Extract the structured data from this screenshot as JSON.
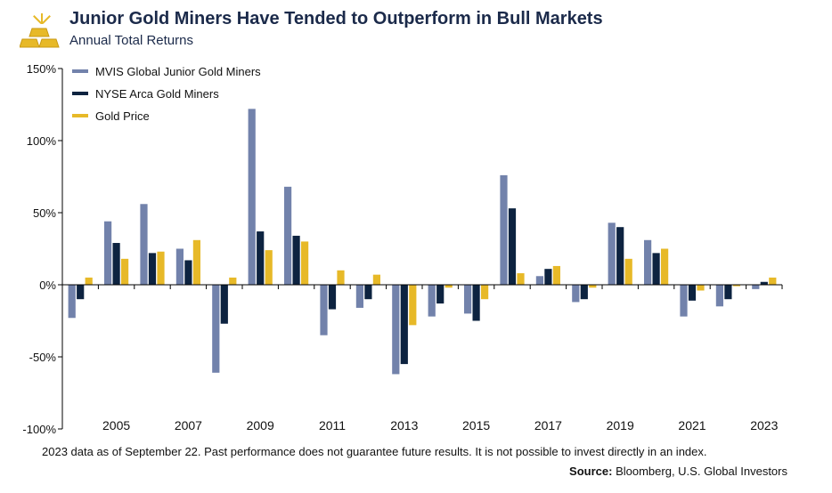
{
  "header": {
    "title": "Junior Gold Miners Have Tended to Outperform in Bull Markets",
    "subtitle": "Annual Total Returns"
  },
  "footer": {
    "note": "2023 data as of September 22. Past performance does not guarantee future results. It is not possible to invest directly in an index.",
    "source_label": "Source:",
    "source_text": "Bloomberg, U.S. Global Investors"
  },
  "colors": {
    "junior": "#7282ab",
    "arca": "#0d2340",
    "gold": "#e7b928",
    "title": "#1b2a4a"
  },
  "chart_data": {
    "type": "bar",
    "categories": [
      "2004",
      "2005",
      "2006",
      "2007",
      "2008",
      "2009",
      "2010",
      "2011",
      "2012",
      "2013",
      "2014",
      "2015",
      "2016",
      "2017",
      "2018",
      "2019",
      "2020",
      "2021",
      "2022",
      "2023"
    ],
    "tick_labels": [
      "2005",
      "2007",
      "2009",
      "2011",
      "2013",
      "2015",
      "2017",
      "2019",
      "2021",
      "2023"
    ],
    "y_tick_labels": [
      "150%",
      "100%",
      "50%",
      "0%",
      "-50%",
      "-100%"
    ],
    "y_ticks": [
      150,
      100,
      50,
      0,
      -50,
      -100
    ],
    "ylim": [
      -100,
      150
    ],
    "legend_position": "top-left",
    "series": [
      {
        "name": "MVIS Global Junior Gold Miners",
        "color": "#7282ab",
        "values": [
          -23,
          44,
          56,
          25,
          -61,
          122,
          68,
          -35,
          -16,
          -62,
          -22,
          -20,
          76,
          6,
          -12,
          43,
          31,
          -22,
          -15,
          -3
        ]
      },
      {
        "name": "NYSE Arca Gold Miners",
        "color": "#0d2340",
        "values": [
          -10,
          29,
          22,
          17,
          -27,
          37,
          34,
          -17,
          -10,
          -55,
          -13,
          -25,
          53,
          11,
          -10,
          40,
          22,
          -11,
          -10,
          2
        ]
      },
      {
        "name": "Gold Price",
        "color": "#e7b928",
        "values": [
          5,
          18,
          23,
          31,
          5,
          24,
          30,
          10,
          7,
          -28,
          -2,
          -10,
          8,
          13,
          -2,
          18,
          25,
          -4,
          -1,
          5
        ]
      }
    ]
  }
}
